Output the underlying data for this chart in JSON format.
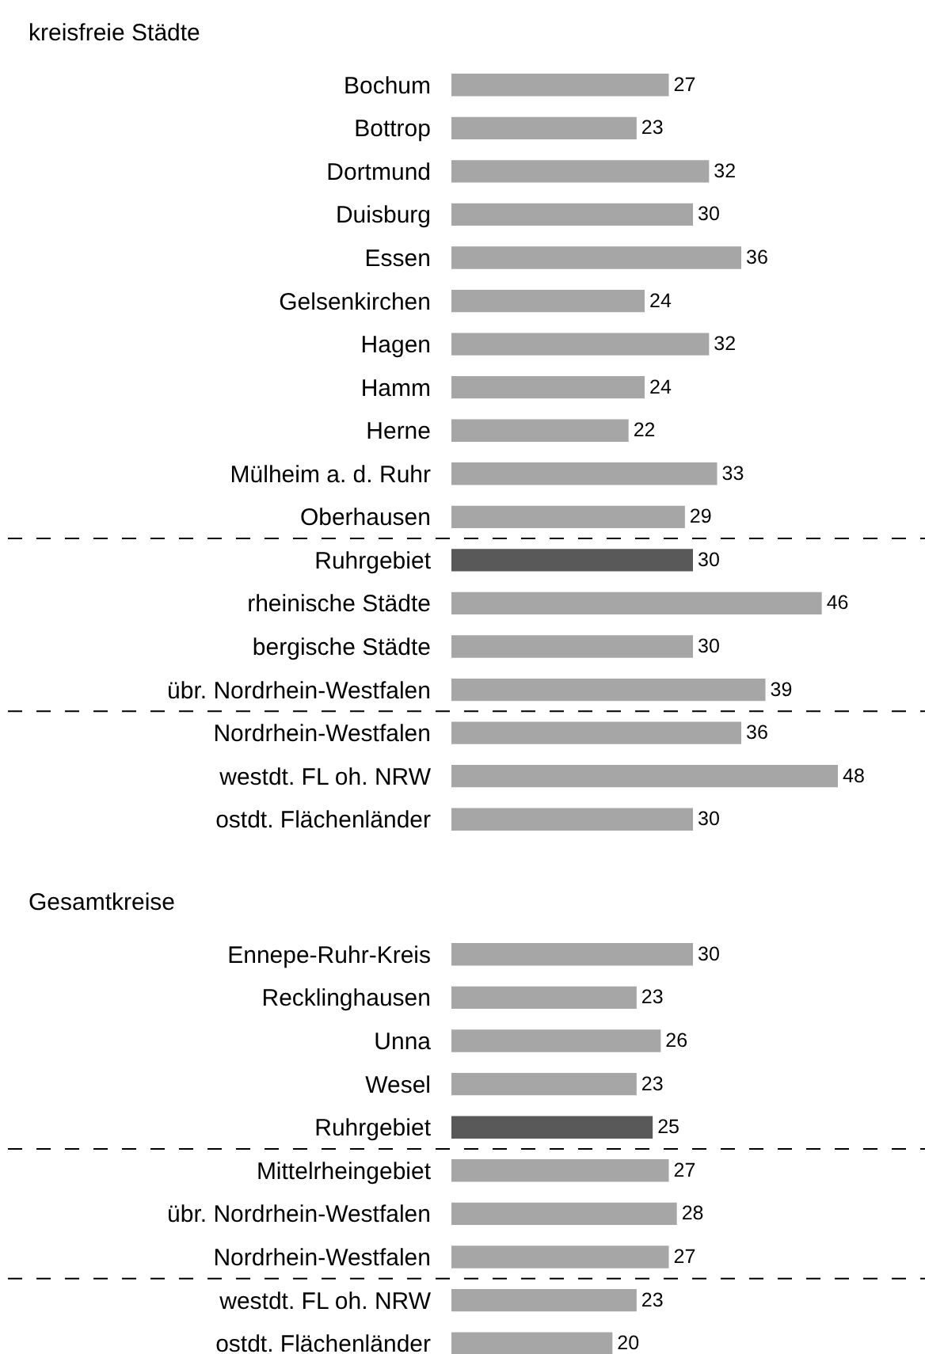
{
  "chart_data": [
    {
      "type": "bar",
      "orientation": "horizontal",
      "title": "kreisfreie Städte",
      "data_labels": true,
      "categories": [
        "Bochum",
        "Bottrop",
        "Dortmund",
        "Duisburg",
        "Essen",
        "Gelsenkirchen",
        "Hagen",
        "Hamm",
        "Herne",
        "Mülheim a. d. Ruhr",
        "Oberhausen",
        "Ruhrgebiet",
        "rheinische Städte",
        "bergische Städte",
        "übr. Nordrhein-Westfalen",
        "Nordrhein-Westfalen",
        "westdt. FL oh. NRW",
        "ostdt. Flächenländer"
      ],
      "values": [
        27,
        23,
        32,
        30,
        36,
        24,
        32,
        24,
        22,
        33,
        29,
        30,
        46,
        30,
        39,
        36,
        48,
        30
      ],
      "colors": [
        "#a6a6a6",
        "#a6a6a6",
        "#a6a6a6",
        "#a6a6a6",
        "#a6a6a6",
        "#a6a6a6",
        "#a6a6a6",
        "#a6a6a6",
        "#a6a6a6",
        "#a6a6a6",
        "#a6a6a6",
        "#595959",
        "#a6a6a6",
        "#a6a6a6",
        "#a6a6a6",
        "#a6a6a6",
        "#a6a6a6",
        "#a6a6a6"
      ]
    },
    {
      "type": "bar",
      "orientation": "horizontal",
      "title": "Gesamtkreise",
      "data_labels": true,
      "categories": [
        "Ennepe-Ruhr-Kreis",
        "Recklinghausen",
        "Unna",
        "Wesel",
        "Ruhrgebiet",
        "Mittelrheingebiet",
        "übr. Nordrhein-Westfalen",
        "Nordrhein-Westfalen",
        "westdt. FL oh. NRW",
        "ostdt. Flächenländer"
      ],
      "values": [
        30,
        23,
        26,
        23,
        25,
        27,
        28,
        27,
        23,
        20
      ],
      "colors": [
        "#a6a6a6",
        "#a6a6a6",
        "#a6a6a6",
        "#a6a6a6",
        "#595959",
        "#a6a6a6",
        "#a6a6a6",
        "#a6a6a6",
        "#a6a6a6",
        "#a6a6a6"
      ]
    }
  ]
}
